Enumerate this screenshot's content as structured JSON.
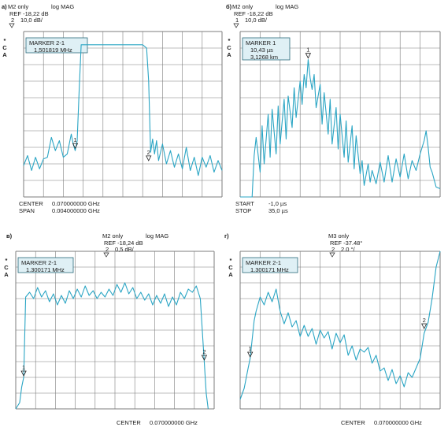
{
  "colors": {
    "trace": "#2aa5c4",
    "grid": "#7d7d7d",
    "marker_box": "#dff0f5",
    "marker_border": "#2a6a7a",
    "text": "#1a1a1a"
  },
  "side_letters": [
    "*",
    "C",
    "A"
  ],
  "chart_data": [
    {
      "type": "line",
      "panel_letter": "а)",
      "header": {
        "channel": "M2 only",
        "format": "log MAG",
        "ref": "REF  -18,22 dB",
        "scale_index": "2",
        "scale": "10,0 dB/"
      },
      "marker_box": {
        "title": "MARKER 2-1",
        "lines": [
          "1,501819 MHz"
        ]
      },
      "markers": [
        {
          "label": "1",
          "x": 0.26,
          "y": 2.85
        },
        {
          "label": "2",
          "x": 0.63,
          "y": 2.1
        }
      ],
      "footer": [
        {
          "label": "CENTER",
          "value": "0.070000000 GHz"
        },
        {
          "label": "SPAN",
          "value": "0.004000000 GHz"
        }
      ],
      "grid": {
        "nx": 10,
        "ny": 10
      },
      "xlim": [
        0,
        1
      ],
      "ylim": [
        0,
        10
      ],
      "series": [
        {
          "x": [
            0,
            0.02,
            0.04,
            0.06,
            0.08,
            0.1,
            0.12,
            0.14,
            0.16,
            0.18,
            0.2,
            0.22,
            0.24,
            0.25,
            0.26,
            0.27,
            0.28,
            0.29,
            0.3,
            0.32,
            0.34,
            0.36,
            0.4,
            0.45,
            0.5,
            0.55,
            0.6,
            0.62,
            0.63,
            0.64,
            0.65,
            0.66,
            0.67,
            0.68,
            0.7,
            0.72,
            0.74,
            0.76,
            0.78,
            0.8,
            0.82,
            0.84,
            0.86,
            0.88,
            0.9,
            0.92,
            0.94,
            0.96,
            0.98,
            1.0
          ],
          "y": [
            1.9,
            2.5,
            1.6,
            2.4,
            1.7,
            2.3,
            2.4,
            3.6,
            2.8,
            3.4,
            2.4,
            2.6,
            3.8,
            3.2,
            2.8,
            3.4,
            6.5,
            9.2,
            9.2,
            9.2,
            9.2,
            9.2,
            9.2,
            9.2,
            9.2,
            9.2,
            9.2,
            9.0,
            7.0,
            2.7,
            3.5,
            2.6,
            3.4,
            2.2,
            3.2,
            2.0,
            2.8,
            1.8,
            2.6,
            1.7,
            3.0,
            1.6,
            2.4,
            1.3,
            2.4,
            1.8,
            2.5,
            1.5,
            2.2,
            1.6
          ]
        }
      ]
    },
    {
      "type": "line",
      "panel_letter": "б)",
      "header": {
        "channel": "M2 only",
        "format": "log MAG",
        "ref": "REF  -18,22 dB",
        "scale_index": "1",
        "scale": "10,0 dB/"
      },
      "marker_box": {
        "title": "MARKER 1",
        "lines": [
          "10,43 µs",
          "3,1268 km"
        ]
      },
      "markers": [
        {
          "label": "1",
          "x": 0.34,
          "y": 8.3
        }
      ],
      "footer": [
        {
          "label": "START",
          "value": "-1,0 µs"
        },
        {
          "label": "STOP",
          "value": "35,0 µs"
        }
      ],
      "grid": {
        "nx": 10,
        "ny": 10
      },
      "xlim": [
        0,
        1
      ],
      "ylim": [
        0,
        10
      ],
      "series": [
        {
          "x": [
            0.0,
            0.02,
            0.04,
            0.06,
            0.07,
            0.08,
            0.1,
            0.11,
            0.12,
            0.14,
            0.15,
            0.16,
            0.18,
            0.19,
            0.2,
            0.22,
            0.23,
            0.24,
            0.26,
            0.27,
            0.28,
            0.3,
            0.31,
            0.32,
            0.33,
            0.34,
            0.35,
            0.36,
            0.37,
            0.38,
            0.4,
            0.41,
            0.42,
            0.44,
            0.45,
            0.46,
            0.48,
            0.49,
            0.5,
            0.52,
            0.53,
            0.54,
            0.56,
            0.57,
            0.58,
            0.6,
            0.61,
            0.62,
            0.64,
            0.65,
            0.66,
            0.68,
            0.7,
            0.72,
            0.74,
            0.76,
            0.78,
            0.8,
            0.82,
            0.84,
            0.86,
            0.88,
            0.9,
            0.92,
            0.93,
            0.94,
            0.95,
            0.96,
            0.98,
            1.0
          ],
          "y": [
            0.0,
            0.0,
            0.0,
            0.0,
            2.5,
            3.6,
            1.5,
            4.3,
            2.0,
            5.0,
            2.4,
            5.3,
            2.6,
            5.5,
            3.2,
            5.9,
            3.5,
            6.1,
            4.2,
            6.6,
            4.8,
            7.0,
            5.6,
            7.4,
            6.6,
            8.3,
            7.2,
            6.5,
            7.4,
            5.4,
            6.8,
            4.4,
            6.3,
            3.8,
            5.9,
            3.2,
            5.4,
            2.9,
            5.0,
            2.4,
            4.6,
            2.1,
            4.3,
            1.7,
            3.7,
            1.4,
            2.2,
            0.7,
            2.0,
            0.9,
            1.6,
            0.8,
            2.1,
            0.9,
            2.5,
            0.9,
            2.3,
            1.2,
            2.6,
            1.1,
            2.2,
            1.6,
            2.6,
            3.4,
            4.0,
            3.0,
            1.8,
            1.5,
            0.6,
            0.5
          ]
        }
      ]
    },
    {
      "type": "line",
      "panel_letter": "в)",
      "header": {
        "channel": "M2 only",
        "format": "log MAG",
        "ref": "REF  -18,24 dB",
        "scale_index": "2",
        "scale": "0,5 dB/"
      },
      "marker_box": {
        "title": "MARKER 2-1",
        "lines": [
          "1.300171 MHz"
        ]
      },
      "markers": [
        {
          "label": "1",
          "x": 0.04,
          "y": 2.0
        },
        {
          "label": "2",
          "x": 0.95,
          "y": 3.0
        }
      ],
      "footer": [
        {
          "label": "CENTER",
          "value": "0.070000000 GHz"
        }
      ],
      "grid": {
        "nx": 10,
        "ny": 10
      },
      "xlim": [
        0,
        1
      ],
      "ylim": [
        0,
        10
      ],
      "series": [
        {
          "x": [
            0.0,
            0.02,
            0.03,
            0.04,
            0.05,
            0.07,
            0.09,
            0.11,
            0.13,
            0.15,
            0.17,
            0.19,
            0.21,
            0.23,
            0.25,
            0.27,
            0.29,
            0.31,
            0.33,
            0.35,
            0.37,
            0.39,
            0.41,
            0.43,
            0.45,
            0.47,
            0.49,
            0.51,
            0.53,
            0.55,
            0.57,
            0.59,
            0.61,
            0.63,
            0.65,
            0.67,
            0.69,
            0.71,
            0.73,
            0.75,
            0.77,
            0.79,
            0.81,
            0.83,
            0.85,
            0.87,
            0.89,
            0.91,
            0.93,
            0.95,
            0.96,
            0.97
          ],
          "y": [
            0.0,
            0.4,
            1.4,
            2.0,
            7.1,
            7.4,
            7.0,
            7.7,
            7.1,
            7.5,
            6.8,
            7.3,
            6.6,
            7.2,
            6.7,
            7.5,
            7.0,
            7.6,
            7.1,
            7.8,
            7.2,
            7.5,
            7.0,
            7.4,
            7.1,
            7.6,
            7.2,
            7.9,
            7.4,
            8.0,
            7.3,
            7.7,
            7.0,
            7.4,
            6.9,
            7.3,
            6.6,
            7.2,
            6.7,
            7.3,
            6.5,
            7.1,
            6.6,
            7.4,
            7.0,
            7.6,
            7.4,
            7.8,
            7.0,
            3.0,
            1.0,
            0.0
          ]
        }
      ]
    },
    {
      "type": "line",
      "panel_letter": "г)",
      "header": {
        "channel": "M3 only",
        "format": "",
        "ref": "REF  -37.48°",
        "scale_index": "2",
        "scale": "2.0 °/"
      },
      "marker_box": {
        "title": "MARKER 2-1",
        "lines": [
          "1.300171 MHz"
        ]
      },
      "markers": [
        {
          "label": "1",
          "x": 0.05,
          "y": 3.2
        },
        {
          "label": "2",
          "x": 0.92,
          "y": 5.0
        }
      ],
      "footer": [
        {
          "label": "CENTER",
          "value": "0.070000000 GHz"
        }
      ],
      "grid": {
        "nx": 10,
        "ny": 10
      },
      "xlim": [
        0,
        1
      ],
      "ylim": [
        0,
        10
      ],
      "series": [
        {
          "x": [
            0.0,
            0.02,
            0.04,
            0.05,
            0.07,
            0.08,
            0.1,
            0.12,
            0.14,
            0.16,
            0.18,
            0.2,
            0.22,
            0.24,
            0.26,
            0.28,
            0.3,
            0.32,
            0.34,
            0.36,
            0.38,
            0.4,
            0.42,
            0.44,
            0.46,
            0.48,
            0.5,
            0.52,
            0.54,
            0.56,
            0.58,
            0.6,
            0.62,
            0.64,
            0.66,
            0.68,
            0.7,
            0.72,
            0.74,
            0.76,
            0.78,
            0.8,
            0.82,
            0.84,
            0.86,
            0.88,
            0.9,
            0.92,
            0.94,
            0.96,
            0.98,
            1.0
          ],
          "y": [
            0.6,
            1.3,
            2.6,
            3.2,
            5.6,
            6.2,
            7.1,
            6.6,
            7.4,
            6.8,
            7.6,
            6.2,
            5.4,
            6.1,
            5.2,
            5.6,
            4.6,
            5.3,
            4.6,
            5.1,
            4.1,
            5.0,
            4.5,
            4.9,
            3.8,
            4.8,
            4.2,
            4.7,
            3.4,
            4.0,
            3.1,
            3.8,
            3.6,
            3.9,
            2.9,
            3.4,
            2.4,
            2.6,
            1.8,
            2.5,
            1.6,
            2.1,
            1.4,
            2.3,
            2.0,
            2.6,
            3.2,
            4.8,
            5.5,
            7.0,
            9.0,
            10.0
          ]
        }
      ]
    }
  ]
}
